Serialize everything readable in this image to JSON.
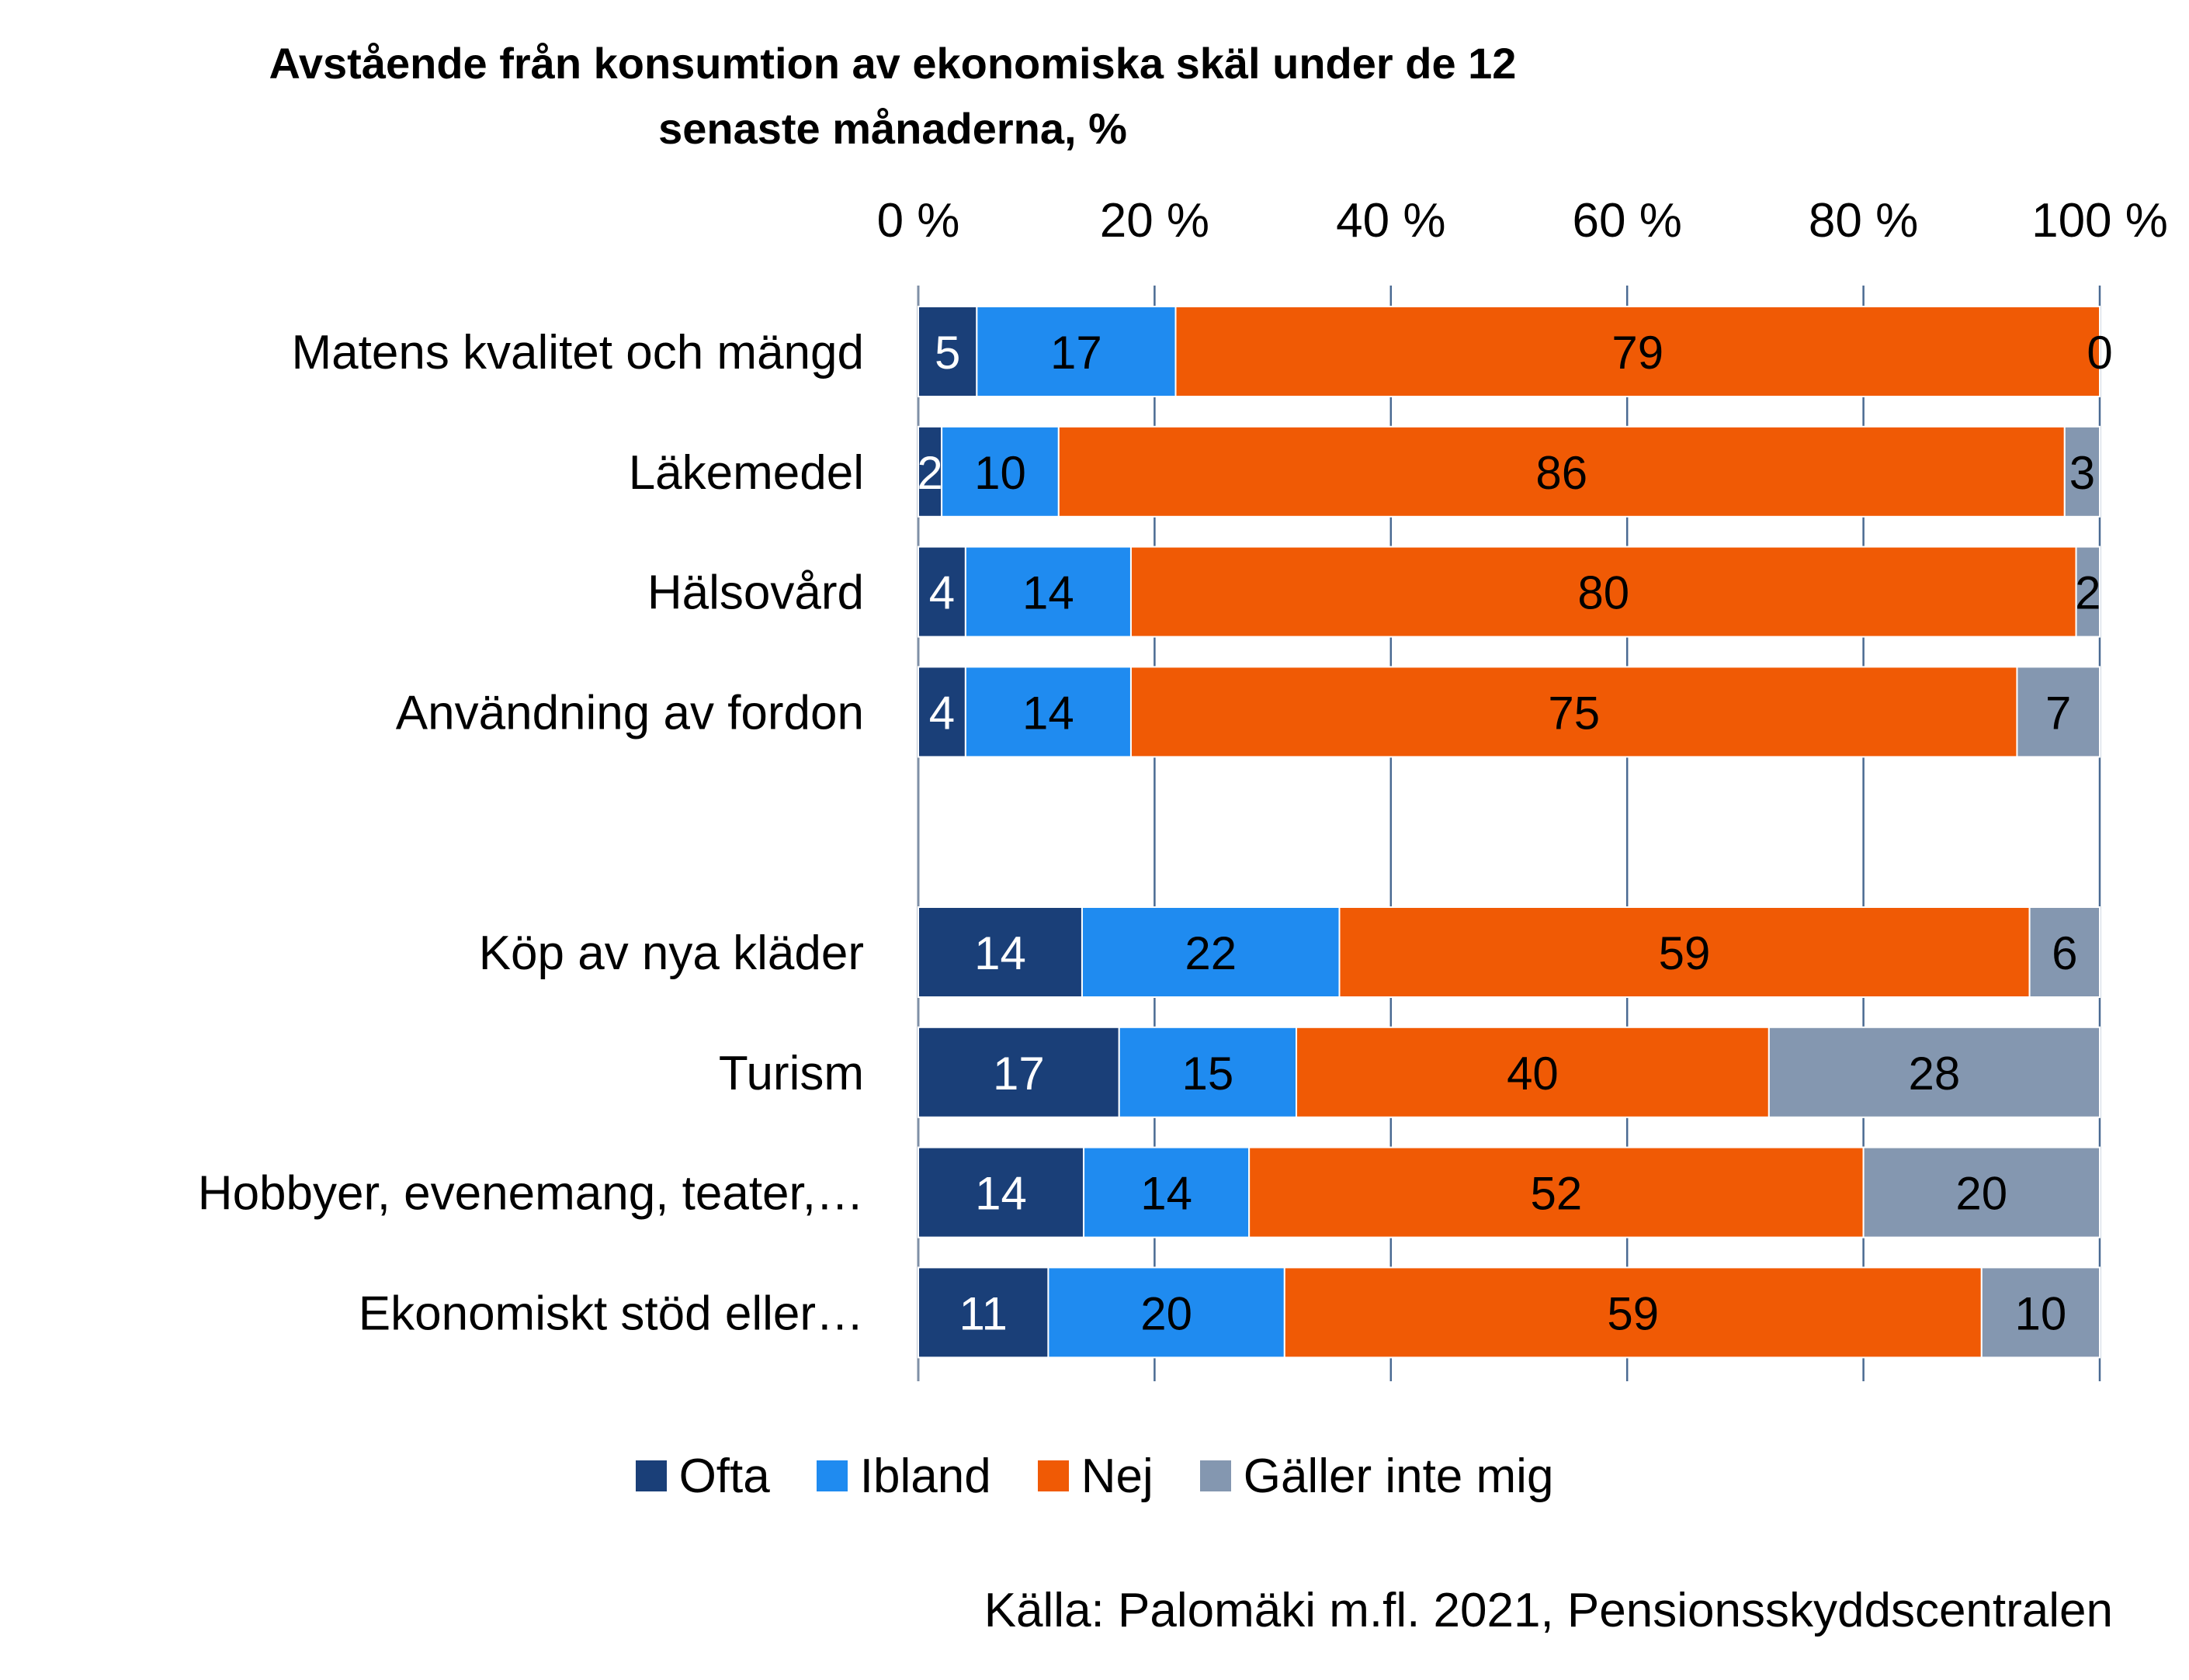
{
  "chart_data": {
    "type": "bar",
    "orientation": "horizontal",
    "stacked": "percent",
    "title": "Avstående från konsumtion av ekonomiska skäl under de 12 senaste månaderna, %",
    "categories": [
      "Matens kvalitet och mängd",
      "Läkemedel",
      "Hälsovård",
      "Användning av fordon",
      "",
      "Köp av nya kläder",
      "Turism",
      "Hobbyer, evenemang, teater,…",
      "Ekonomiskt stöd eller…"
    ],
    "series": [
      {
        "name": "Ofta",
        "color": "#1a3f78",
        "values": [
          5,
          2,
          4,
          4,
          null,
          14,
          17,
          14,
          11
        ]
      },
      {
        "name": "Ibland",
        "color": "#1f8bf0",
        "values": [
          17,
          10,
          14,
          14,
          null,
          22,
          15,
          14,
          20
        ]
      },
      {
        "name": "Nej",
        "color": "#f05a05",
        "values": [
          79,
          86,
          80,
          75,
          null,
          59,
          40,
          52,
          59
        ]
      },
      {
        "name": "Gäller inte mig",
        "color": "#8497b0",
        "values": [
          0,
          3,
          2,
          7,
          null,
          6,
          28,
          20,
          10
        ]
      }
    ],
    "x_ticks": [
      "0 %",
      "20 %",
      "40 %",
      "60 %",
      "80 %",
      "100 %"
    ],
    "xlim": [
      0,
      100
    ],
    "x_axis_position": "top",
    "grid": true,
    "legend": "bottom",
    "source": "Källa: Palomäki m.fl. 2021, Pensionsskyddscentralen"
  }
}
